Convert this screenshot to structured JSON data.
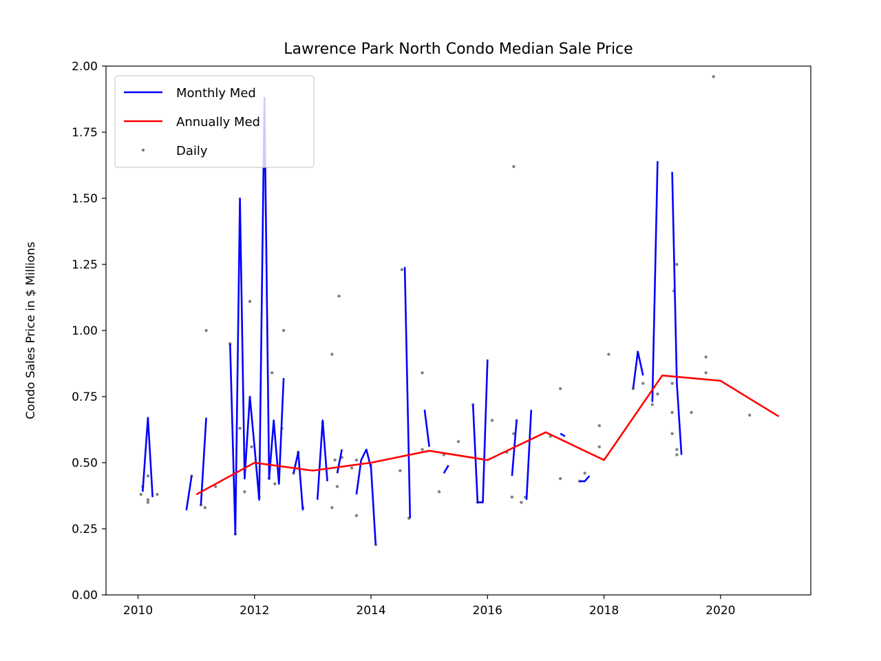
{
  "chart_data": {
    "type": "line",
    "title": "Lawrence Park North Condo Median Sale Price",
    "xlabel": "",
    "ylabel": "Condo Sales Price in $ Millions",
    "xlim": [
      2009.45,
      2021.55
    ],
    "ylim": [
      0.0,
      2.0
    ],
    "x_ticks": [
      2010,
      2012,
      2014,
      2016,
      2018,
      2020
    ],
    "x_tick_labels": [
      "2010",
      "2012",
      "2014",
      "2016",
      "2018",
      "2020"
    ],
    "y_ticks": [
      0.0,
      0.25,
      0.5,
      0.75,
      1.0,
      1.25,
      1.5,
      1.75,
      2.0
    ],
    "y_tick_labels": [
      "0.00",
      "0.25",
      "0.50",
      "0.75",
      "1.00",
      "1.25",
      "1.50",
      "1.75",
      "2.00"
    ],
    "grid": false,
    "legend": {
      "position": "top-left",
      "entries": [
        {
          "label": "Monthly Med",
          "color": "#0000ff",
          "kind": "line"
        },
        {
          "label": "Annually Med",
          "color": "#ff0000",
          "kind": "line"
        },
        {
          "label": "Daily",
          "color": "#808080",
          "kind": "scatter"
        }
      ]
    },
    "series": [
      {
        "name": "Monthly Med",
        "color": "#0000ff",
        "segments": [
          [
            [
              2010.08,
              0.39
            ],
            [
              2010.17,
              0.67
            ],
            [
              2010.25,
              0.37
            ]
          ],
          [
            [
              2010.83,
              0.32
            ],
            [
              2010.92,
              0.45
            ]
          ],
          [
            [
              2011.08,
              0.34
            ],
            [
              2011.17,
              0.67
            ]
          ],
          [
            [
              2011.58,
              0.95
            ],
            [
              2011.67,
              0.23
            ],
            [
              2011.75,
              1.5
            ],
            [
              2011.83,
              0.44
            ],
            [
              2011.92,
              0.75
            ],
            [
              2012.0,
              0.56
            ],
            [
              2012.08,
              0.36
            ],
            [
              2012.17,
              1.88
            ],
            [
              2012.25,
              0.44
            ],
            [
              2012.33,
              0.66
            ],
            [
              2012.42,
              0.42
            ],
            [
              2012.5,
              0.82
            ]
          ],
          [
            [
              2012.67,
              0.46
            ],
            [
              2012.75,
              0.54
            ],
            [
              2012.83,
              0.32
            ]
          ],
          [
            [
              2013.08,
              0.36
            ],
            [
              2013.17,
              0.66
            ],
            [
              2013.25,
              0.43
            ]
          ],
          [
            [
              2013.42,
              0.46
            ],
            [
              2013.5,
              0.55
            ]
          ],
          [
            [
              2013.75,
              0.38
            ],
            [
              2013.83,
              0.51
            ],
            [
              2013.92,
              0.55
            ],
            [
              2014.0,
              0.48
            ],
            [
              2014.08,
              0.19
            ]
          ],
          [
            [
              2014.58,
              1.24
            ],
            [
              2014.67,
              0.29
            ]
          ],
          [
            [
              2014.92,
              0.7
            ],
            [
              2015.0,
              0.56
            ]
          ],
          [
            [
              2015.25,
              0.46
            ],
            [
              2015.33,
              0.49
            ]
          ],
          [
            [
              2015.75,
              0.72
            ],
            [
              2015.83,
              0.35
            ],
            [
              2015.92,
              0.35
            ],
            [
              2016.0,
              0.89
            ]
          ],
          [
            [
              2016.42,
              0.45
            ],
            [
              2016.5,
              0.66
            ]
          ],
          [
            [
              2016.67,
              0.36
            ],
            [
              2016.75,
              0.7
            ]
          ],
          [
            [
              2017.25,
              0.61
            ],
            [
              2017.33,
              0.6
            ]
          ],
          [
            [
              2017.58,
              0.43
            ],
            [
              2017.67,
              0.43
            ],
            [
              2017.75,
              0.45
            ]
          ],
          [
            [
              2018.5,
              0.78
            ],
            [
              2018.58,
              0.92
            ],
            [
              2018.67,
              0.83
            ]
          ],
          [
            [
              2018.83,
              0.73
            ],
            [
              2018.92,
              1.64
            ]
          ],
          [
            [
              2019.17,
              1.6
            ],
            [
              2019.25,
              0.8
            ],
            [
              2019.33,
              0.53
            ]
          ]
        ]
      },
      {
        "name": "Annually Med",
        "color": "#ff0000",
        "x": [
          2011.0,
          2012.0,
          2013.0,
          2014.0,
          2015.0,
          2016.0,
          2017.0,
          2018.0,
          2019.0,
          2020.0,
          2021.0
        ],
        "y": [
          0.38,
          0.5,
          0.47,
          0.5,
          0.545,
          0.51,
          0.615,
          0.51,
          0.83,
          0.81,
          0.675
        ]
      },
      {
        "name": "Daily",
        "color": "#808080",
        "points": [
          [
            2010.05,
            0.38
          ],
          [
            2010.08,
            0.41
          ],
          [
            2010.17,
            0.36
          ],
          [
            2010.17,
            0.35
          ],
          [
            2010.17,
            0.45
          ],
          [
            2010.33,
            0.38
          ],
          [
            2010.92,
            0.45
          ],
          [
            2011.08,
            0.34
          ],
          [
            2011.15,
            0.33
          ],
          [
            2011.17,
            1.0
          ],
          [
            2011.33,
            0.41
          ],
          [
            2011.58,
            0.95
          ],
          [
            2011.67,
            0.23
          ],
          [
            2011.75,
            0.63
          ],
          [
            2011.83,
            0.39
          ],
          [
            2011.92,
            1.11
          ],
          [
            2011.95,
            0.56
          ],
          [
            2012.08,
            0.37
          ],
          [
            2012.25,
            0.44
          ],
          [
            2012.3,
            0.84
          ],
          [
            2012.35,
            0.42
          ],
          [
            2012.5,
            1.0
          ],
          [
            2012.47,
            0.63
          ],
          [
            2012.67,
            0.46
          ],
          [
            2012.75,
            0.54
          ],
          [
            2012.83,
            0.33
          ],
          [
            2013.17,
            0.65
          ],
          [
            2013.33,
            0.91
          ],
          [
            2013.33,
            0.33
          ],
          [
            2013.38,
            0.51
          ],
          [
            2013.42,
            0.41
          ],
          [
            2013.45,
            1.13
          ],
          [
            2013.5,
            0.52
          ],
          [
            2013.75,
            0.3
          ],
          [
            2013.75,
            0.51
          ],
          [
            2013.67,
            0.48
          ],
          [
            2014.0,
            0.49
          ],
          [
            2014.08,
            0.19
          ],
          [
            2014.5,
            0.47
          ],
          [
            2014.53,
            1.23
          ],
          [
            2014.65,
            0.29
          ],
          [
            2014.88,
            0.84
          ],
          [
            2014.88,
            0.55
          ],
          [
            2015.17,
            0.39
          ],
          [
            2015.25,
            0.53
          ],
          [
            2015.5,
            0.58
          ],
          [
            2015.75,
            0.72
          ],
          [
            2015.83,
            0.35
          ],
          [
            2016.08,
            0.66
          ],
          [
            2016.33,
            0.54
          ],
          [
            2016.42,
            0.37
          ],
          [
            2016.45,
            1.62
          ],
          [
            2016.45,
            0.61
          ],
          [
            2016.5,
            0.66
          ],
          [
            2016.58,
            0.35
          ],
          [
            2016.65,
            0.37
          ],
          [
            2017.08,
            0.6
          ],
          [
            2017.25,
            0.78
          ],
          [
            2017.25,
            0.44
          ],
          [
            2017.58,
            0.43
          ],
          [
            2017.67,
            0.46
          ],
          [
            2017.92,
            0.56
          ],
          [
            2017.92,
            0.64
          ],
          [
            2018.08,
            0.91
          ],
          [
            2018.5,
            0.78
          ],
          [
            2018.67,
            0.8
          ],
          [
            2018.83,
            0.72
          ],
          [
            2018.92,
            0.76
          ],
          [
            2019.17,
            0.61
          ],
          [
            2019.17,
            0.69
          ],
          [
            2019.17,
            0.8
          ],
          [
            2019.2,
            1.15
          ],
          [
            2019.25,
            1.25
          ],
          [
            2019.25,
            0.55
          ],
          [
            2019.25,
            0.53
          ],
          [
            2019.5,
            0.69
          ],
          [
            2019.75,
            0.9
          ],
          [
            2019.75,
            0.84
          ],
          [
            2019.88,
            1.96
          ],
          [
            2020.5,
            0.68
          ]
        ]
      }
    ]
  }
}
